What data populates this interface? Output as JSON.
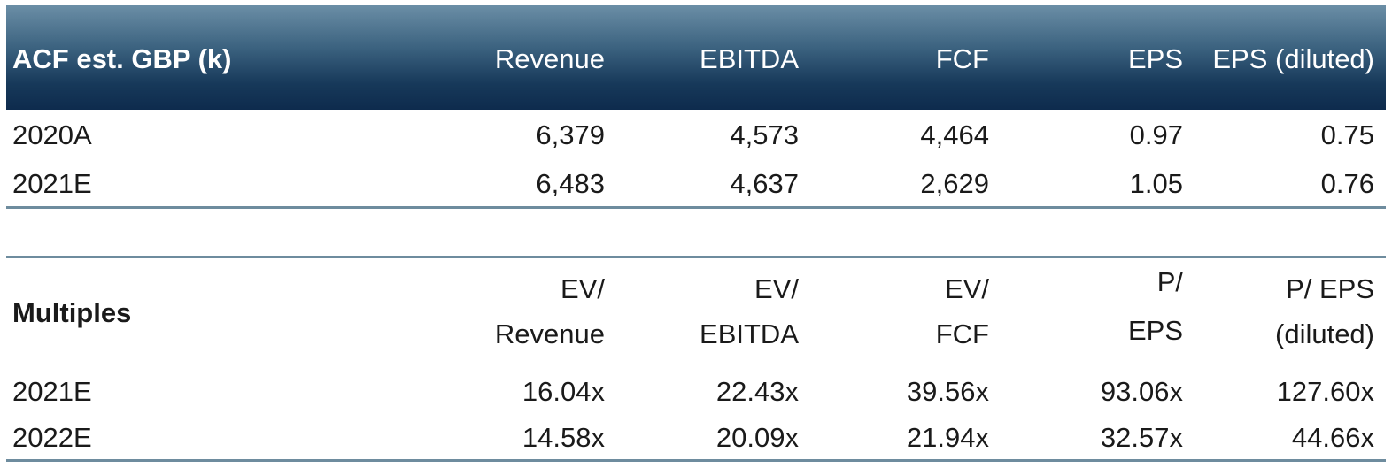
{
  "estimates": {
    "title": "ACF est. GBP (k)",
    "columns": [
      "Revenue",
      "EBITDA",
      "FCF",
      "EPS",
      "EPS (diluted)"
    ],
    "rows": [
      {
        "year": "2020A",
        "values": [
          "6,379",
          "4,573",
          "4,464",
          "0.97",
          "0.75"
        ]
      },
      {
        "year": "2021E",
        "values": [
          "6,483",
          "4,637",
          "2,629",
          "1.05",
          "0.76"
        ]
      }
    ]
  },
  "multiples": {
    "title": "Multiples",
    "columns": [
      {
        "line1": "EV/",
        "line2": "Revenue"
      },
      {
        "line1": "EV/",
        "line2": "EBITDA"
      },
      {
        "line1": "EV/",
        "line2": "FCF"
      },
      {
        "line1": "P/",
        "line2": "EPS"
      },
      {
        "line1": "P/ EPS",
        "line2": "(diluted)"
      }
    ],
    "rows": [
      {
        "year": "2021E",
        "values": [
          "16.04x",
          "22.43x",
          "39.56x",
          "93.06x",
          "127.60x"
        ]
      },
      {
        "year": "2022E",
        "values": [
          "14.58x",
          "20.09x",
          "21.94x",
          "32.57x",
          "44.66x"
        ]
      }
    ]
  },
  "colors": {
    "header_top": "#6b8ea6",
    "header_bottom": "#0e2b4d",
    "rule": "#6e8c9e"
  }
}
